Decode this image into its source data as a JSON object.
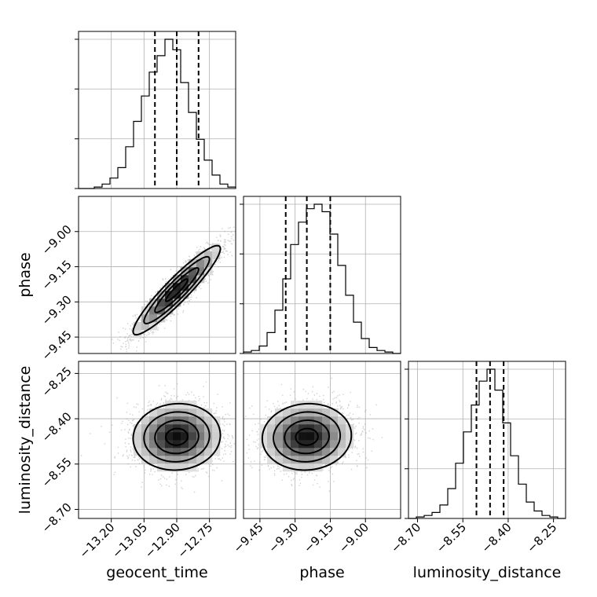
{
  "chart_data": {
    "type": "corner",
    "parameters": [
      "geocent_time",
      "phase",
      "luminosity_distance"
    ],
    "axis_labels": {
      "x": [
        "geocent_time",
        "phase",
        "luminosity_distance"
      ],
      "y": [
        "phase",
        "luminosity_distance"
      ]
    },
    "ranges": {
      "geocent_time": [
        -13.35,
        -12.63
      ],
      "phase": [
        -9.52,
        -8.85
      ],
      "luminosity_distance": [
        -8.73,
        -8.21
      ]
    },
    "ticks": {
      "geocent_time": [
        -13.2,
        -13.05,
        -12.9,
        -12.75
      ],
      "phase": [
        -9.45,
        -9.3,
        -9.15,
        -9.0
      ],
      "luminosity_distance": [
        -8.7,
        -8.55,
        -8.4,
        -8.25
      ]
    },
    "tick_labels": {
      "geocent_time": [
        "−13.20",
        "−13.05",
        "−12.90",
        "−12.75"
      ],
      "phase": [
        "−9.45",
        "−9.30",
        "−9.15",
        "−9.00"
      ],
      "luminosity_distance": [
        "−8.70",
        "−8.55",
        "−8.40",
        "−8.25"
      ]
    },
    "quantiles": {
      "geocent_time": [
        -13.0,
        -12.9,
        -12.8
      ],
      "phase": [
        -9.34,
        -9.25,
        -9.15
      ],
      "luminosity_distance": [
        -8.505,
        -8.46,
        -8.415
      ]
    },
    "histograms": {
      "geocent_time": {
        "edges": [
          -13.35,
          -13.314,
          -13.278,
          -13.242,
          -13.206,
          -13.17,
          -13.134,
          -13.098,
          -13.062,
          -13.026,
          -12.99,
          -12.954,
          -12.918,
          -12.882,
          -12.846,
          -12.81,
          -12.774,
          -12.738,
          -12.702,
          -12.666,
          -12.63
        ],
        "counts": [
          0,
          0,
          0.01,
          0.03,
          0.07,
          0.14,
          0.28,
          0.45,
          0.62,
          0.78,
          0.89,
          1.0,
          0.93,
          0.71,
          0.51,
          0.33,
          0.19,
          0.09,
          0.03,
          0.01
        ]
      },
      "phase": {
        "edges": [
          -9.52,
          -9.4865,
          -9.453,
          -9.4195,
          -9.386,
          -9.3525,
          -9.319,
          -9.2855,
          -9.252,
          -9.2185,
          -9.185,
          -9.1515,
          -9.118,
          -9.0845,
          -9.051,
          -9.0175,
          -8.984,
          -8.9505,
          -8.917,
          -8.8835,
          -8.85
        ],
        "counts": [
          0.01,
          0.02,
          0.05,
          0.14,
          0.29,
          0.5,
          0.73,
          0.88,
          0.97,
          1.0,
          0.95,
          0.8,
          0.59,
          0.39,
          0.21,
          0.1,
          0.04,
          0.02,
          0.01,
          0
        ]
      },
      "luminosity_distance": {
        "edges": [
          -8.73,
          -8.704,
          -8.678,
          -8.652,
          -8.626,
          -8.6,
          -8.574,
          -8.548,
          -8.522,
          -8.496,
          -8.47,
          -8.444,
          -8.418,
          -8.392,
          -8.366,
          -8.34,
          -8.314,
          -8.288,
          -8.262,
          -8.236,
          -8.21
        ],
        "counts": [
          0,
          0.01,
          0.02,
          0.04,
          0.09,
          0.2,
          0.37,
          0.58,
          0.76,
          0.92,
          1.0,
          0.86,
          0.64,
          0.42,
          0.23,
          0.11,
          0.05,
          0.02,
          0.01,
          0
        ]
      }
    },
    "joint": [
      {
        "x": "geocent_time",
        "y": "phase",
        "mean": [
          -12.9,
          -9.25
        ],
        "std": [
          0.1,
          0.095
        ],
        "corr": 0.93
      },
      {
        "x": "geocent_time",
        "y": "luminosity_distance",
        "mean": [
          -12.9,
          -8.46
        ],
        "std": [
          0.1,
          0.055
        ],
        "corr": 0.05
      },
      {
        "x": "phase",
        "y": "luminosity_distance",
        "mean": [
          -9.25,
          -8.46
        ],
        "std": [
          0.095,
          0.055
        ],
        "corr": 0.05
      }
    ],
    "contour_levels": [
      0.5,
      1.0,
      1.5,
      2.0
    ],
    "grid": true
  }
}
